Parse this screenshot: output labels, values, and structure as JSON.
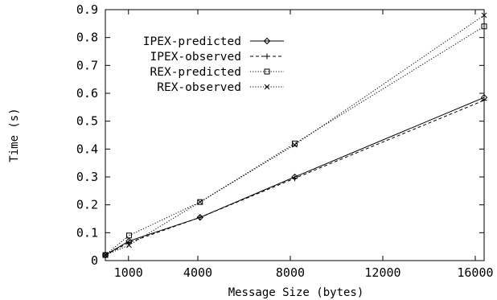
{
  "chart_data": {
    "type": "line",
    "title": "",
    "xlabel": "Message Size (bytes)",
    "ylabel": "Time (s)",
    "xlim": [
      0,
      16384
    ],
    "ylim": [
      0,
      0.9
    ],
    "xticks": [
      1000,
      4000,
      8000,
      12000,
      16000
    ],
    "xtick_labels": [
      "1000",
      "4000",
      "8000",
      "12000",
      "16000"
    ],
    "yticks": [
      0,
      0.1,
      0.2,
      0.3,
      0.4,
      0.5,
      0.6,
      0.7,
      0.8,
      0.9
    ],
    "ytick_labels": [
      "0",
      "0.1",
      "0.2",
      "0.3",
      "0.4",
      "0.5",
      "0.6",
      "0.7",
      "0.8",
      "0.9"
    ],
    "grid": false,
    "legend_position": "top-left",
    "x": [
      0,
      1024,
      4096,
      8192,
      16384
    ],
    "series": [
      {
        "name": "IPEX-predicted",
        "values": [
          0.02,
          0.07,
          0.155,
          0.3,
          0.585
        ],
        "line": "solid",
        "marker": "diamond"
      },
      {
        "name": "IPEX-observed",
        "values": [
          0.02,
          0.065,
          0.155,
          0.295,
          0.575
        ],
        "line": "dashed",
        "marker": "plus"
      },
      {
        "name": "REX-predicted",
        "values": [
          0.02,
          0.09,
          0.21,
          0.42,
          0.84
        ],
        "line": "dotted",
        "marker": "square"
      },
      {
        "name": "REX-observed",
        "values": [
          0.02,
          0.055,
          0.21,
          0.415,
          0.88
        ],
        "line": "dotted",
        "marker": "cross"
      }
    ]
  }
}
